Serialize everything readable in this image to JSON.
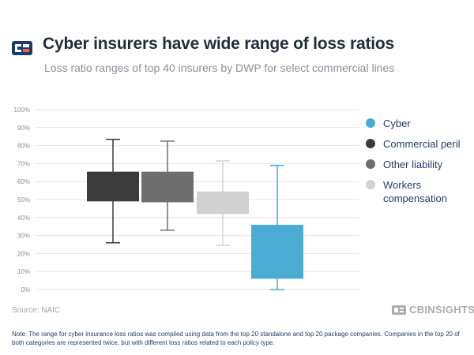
{
  "header": {
    "title": "Cyber insurers have wide range of loss ratios",
    "subtitle": "Loss ratio ranges of top 40 insurers by DWP for select commercial lines"
  },
  "chart_data": {
    "type": "box",
    "title": "Cyber insurers have wide range of loss ratios",
    "subtitle": "Loss ratio ranges of top 40 insurers by DWP for select commercial lines",
    "xlabel": "",
    "ylabel": "",
    "ylim": [
      0,
      100
    ],
    "y_ticks": [
      "0%",
      "10%",
      "20%",
      "30%",
      "40%",
      "50%",
      "60%",
      "70%",
      "80%",
      "90%",
      "100%"
    ],
    "grid": true,
    "legend_position": "right",
    "series": [
      {
        "name": "Cyber",
        "color": "#4aabd3",
        "min": 0,
        "q1": 6,
        "q3": 36,
        "max": 69
      },
      {
        "name": "Commercial peril",
        "color": "#3b3b3b",
        "min": 26,
        "q1": 49,
        "q3": 65.5,
        "max": 83.5
      },
      {
        "name": "Other liability",
        "color": "#6e6e6e",
        "min": 33,
        "q1": 48.5,
        "q3": 65.5,
        "max": 82.5
      },
      {
        "name": "Workers compensation",
        "color": "#d2d2d2",
        "min": 24.5,
        "q1": 42,
        "q3": 54.5,
        "max": 71.5
      }
    ],
    "draw_order": [
      "Commercial peril",
      "Other liability",
      "Workers compensation",
      "Cyber"
    ]
  },
  "footer": {
    "source": "Source: NAIC",
    "brand": "CBINSIGHTS",
    "note": "Note: The range for cyber insurance loss ratios was compiled using data from the top 20 standalone and top 20 package companies. Companies in the top 20 of both categories are represented twice, but with different loss ratios related to each policy type."
  },
  "colors": {
    "title": "#1f2d3d",
    "legend_text": "#24406a",
    "grid": "#e6e6e6",
    "logo_navy": "#1f3a66",
    "logo_orange": "#f0673a"
  }
}
